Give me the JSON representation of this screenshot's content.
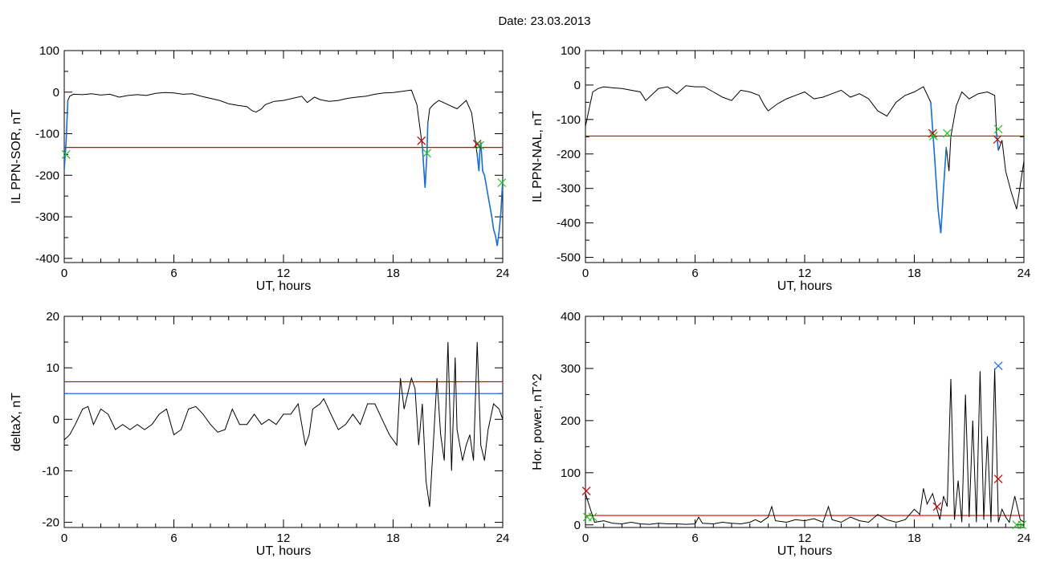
{
  "page": {
    "title": "Date:  23.03.2013"
  },
  "colors": {
    "trace": "#000000",
    "threshold_red": "#e00000",
    "threshold_blue": "#1a6fd1",
    "marker_red": "#c00000",
    "marker_green": "#22c022",
    "marker_blue": "#1a6fd1"
  },
  "chart_data": [
    {
      "id": "il-ppn-sor",
      "type": "line",
      "xlabel": "UT, hours",
      "ylabel": "IL PPN-SOR, nT",
      "xlim": [
        0,
        24
      ],
      "ylim": [
        -410,
        100
      ],
      "xticks": [
        0,
        6,
        12,
        18,
        24
      ],
      "yticks": [
        100,
        0,
        -100,
        -200,
        -300,
        -400
      ],
      "thresholds": [
        {
          "value": -133,
          "color": "red"
        }
      ],
      "highlight_ranges": [
        [
          0,
          0.25
        ],
        [
          19.6,
          19.95
        ],
        [
          22.6,
          24
        ]
      ],
      "series": [
        {
          "x": [
            0,
            0.1,
            0.2,
            0.3,
            0.5,
            1,
            1.5,
            2,
            2.5,
            3,
            3.5,
            4,
            4.5,
            5,
            5.5,
            6,
            6.5,
            7,
            7.5,
            8,
            8.5,
            9,
            9.5,
            10,
            10.3,
            10.5,
            10.8,
            11,
            11.5,
            12,
            12.5,
            13,
            13.3,
            13.7,
            14,
            14.5,
            15,
            15.5,
            16,
            16.5,
            17,
            17.5,
            18,
            18.5,
            19,
            19.3,
            19.6,
            19.75,
            19.85,
            19.9,
            20,
            20.2,
            20.5,
            21,
            21.5,
            22,
            22.3,
            22.6,
            22.7,
            22.75,
            22.8,
            22.9,
            23,
            23.2,
            23.4,
            23.5,
            23.6,
            23.7,
            23.8,
            23.9,
            24
          ],
          "y": [
            -185,
            -120,
            -20,
            -10,
            -5,
            -6,
            -4,
            -7,
            -5,
            -12,
            -8,
            -6,
            -8,
            -3,
            -1,
            -2,
            -5,
            -4,
            -10,
            -15,
            -20,
            -28,
            -32,
            -35,
            -45,
            -48,
            -40,
            -30,
            -22,
            -20,
            -15,
            -10,
            -25,
            -12,
            -18,
            -22,
            -20,
            -15,
            -12,
            -10,
            -5,
            -2,
            -1,
            2,
            5,
            -30,
            -130,
            -230,
            -150,
            -75,
            -40,
            -30,
            -20,
            -30,
            -40,
            -20,
            -50,
            -150,
            -190,
            -140,
            -120,
            -190,
            -200,
            -250,
            -300,
            -330,
            -345,
            -370,
            -335,
            -290,
            -210
          ]
        }
      ],
      "markers": [
        {
          "x": 19.55,
          "y": -117,
          "color": "red",
          "symbol": "x"
        },
        {
          "x": 19.85,
          "y": -147,
          "color": "green",
          "symbol": "x"
        },
        {
          "x": 22.6,
          "y": -125,
          "color": "red",
          "symbol": "x"
        },
        {
          "x": 22.75,
          "y": -128,
          "color": "green",
          "symbol": "x"
        },
        {
          "x": 23.95,
          "y": -218,
          "color": "green",
          "symbol": "x"
        },
        {
          "x": 0.1,
          "y": -150,
          "color": "green",
          "symbol": "x"
        }
      ]
    },
    {
      "id": "il-ppn-nal",
      "type": "line",
      "xlabel": "UT, hours",
      "ylabel": "IL PPN-NAL, nT",
      "xlim": [
        0,
        24
      ],
      "ylim": [
        -515,
        100
      ],
      "xticks": [
        0,
        6,
        12,
        18,
        24
      ],
      "yticks": [
        100,
        0,
        -100,
        -200,
        -300,
        -400,
        -500
      ],
      "thresholds": [
        {
          "value": -148,
          "color": "red"
        }
      ],
      "highlight_ranges": [
        [
          18.9,
          19.8
        ],
        [
          22.5,
          22.6
        ]
      ],
      "series": [
        {
          "x": [
            0,
            0.2,
            0.4,
            0.7,
            1,
            1.5,
            2,
            2.5,
            3,
            3.3,
            3.6,
            4,
            4.5,
            5,
            5.5,
            6,
            6.5,
            7,
            7.5,
            8,
            8.5,
            9,
            9.5,
            9.8,
            10,
            10.5,
            11,
            11.5,
            12,
            12.5,
            13,
            13.5,
            14,
            14.5,
            15,
            15.5,
            16,
            16.5,
            17,
            17.5,
            18,
            18.5,
            18.9,
            19.1,
            19.3,
            19.45,
            19.6,
            19.75,
            19.9,
            20,
            20.3,
            20.6,
            21,
            21.5,
            22,
            22.4,
            22.5,
            22.6,
            22.8,
            23,
            23.3,
            23.6,
            23.8,
            24
          ],
          "y": [
            -120,
            -70,
            -20,
            -10,
            -5,
            -8,
            -10,
            -15,
            -20,
            -45,
            -30,
            -10,
            -5,
            -25,
            -2,
            -5,
            -5,
            -20,
            -35,
            -45,
            -15,
            -20,
            -30,
            -60,
            -75,
            -55,
            -40,
            -30,
            -20,
            -40,
            -35,
            -25,
            -15,
            -35,
            -25,
            -40,
            -75,
            -90,
            -50,
            -30,
            -20,
            -5,
            -50,
            -200,
            -360,
            -430,
            -300,
            -180,
            -250,
            -150,
            -60,
            -20,
            -40,
            -25,
            -20,
            -30,
            -140,
            -190,
            -160,
            -250,
            -310,
            -360,
            -290,
            -220
          ]
        }
      ],
      "markers": [
        {
          "x": 19.0,
          "y": -140,
          "color": "red",
          "symbol": "x"
        },
        {
          "x": 19.05,
          "y": -148,
          "color": "green",
          "symbol": "x"
        },
        {
          "x": 19.8,
          "y": -140,
          "color": "green",
          "symbol": "x"
        },
        {
          "x": 22.6,
          "y": -128,
          "color": "green",
          "symbol": "x"
        },
        {
          "x": 22.55,
          "y": -158,
          "color": "red",
          "symbol": "x"
        }
      ]
    },
    {
      "id": "delta-x",
      "type": "line",
      "xlabel": "UT, hours",
      "ylabel": "deltaX, nT",
      "xlim": [
        0,
        24
      ],
      "ylim": [
        -21,
        20
      ],
      "xticks": [
        0,
        6,
        12,
        18,
        24
      ],
      "yticks": [
        20,
        10,
        0,
        -10,
        -20
      ],
      "thresholds": [
        {
          "value": 7.3,
          "color": "red"
        },
        {
          "value": 5.0,
          "color": "blue"
        }
      ],
      "highlight_ranges": [],
      "series": [
        {
          "x": [
            0,
            0.3,
            0.6,
            1,
            1.3,
            1.6,
            2,
            2.4,
            2.8,
            3.2,
            3.6,
            4,
            4.4,
            4.8,
            5.2,
            5.6,
            6,
            6.4,
            6.8,
            7.2,
            7.6,
            8,
            8.4,
            8.8,
            9.2,
            9.6,
            10,
            10.4,
            10.8,
            11.2,
            11.6,
            12,
            12.4,
            12.8,
            13.2,
            13.4,
            13.6,
            14,
            14.2,
            14.6,
            15,
            15.4,
            15.8,
            16.2,
            16.6,
            17,
            17.4,
            17.8,
            18.2,
            18.4,
            18.6,
            18.8,
            19,
            19.2,
            19.4,
            19.6,
            19.8,
            20,
            20.2,
            20.4,
            20.6,
            20.8,
            21,
            21.2,
            21.4,
            21.5,
            21.8,
            22,
            22.2,
            22.4,
            22.6,
            22.8,
            23,
            23.2,
            23.5,
            23.8,
            24
          ],
          "y": [
            -4,
            -3,
            -1,
            2,
            2.5,
            -1,
            2,
            1,
            -2,
            -1,
            -2,
            -1,
            -2,
            -1,
            1,
            2,
            -3,
            -2,
            2,
            2.5,
            1,
            -1,
            -2.5,
            -2,
            2,
            -1,
            -1,
            1,
            -1,
            0,
            -1,
            1,
            1,
            3,
            -5,
            -3,
            2,
            3,
            4,
            1,
            -2,
            -1,
            1,
            -1,
            3,
            3,
            0,
            -3,
            -5,
            8,
            2,
            5,
            8,
            6,
            -5,
            3,
            -12,
            -17,
            -5,
            8,
            -3,
            -8,
            15,
            -10,
            12,
            -2,
            -8,
            -5,
            -3,
            -8,
            15,
            -5,
            -8,
            -2,
            3,
            2,
            0
          ]
        }
      ],
      "markers": []
    },
    {
      "id": "hor-power",
      "type": "line",
      "xlabel": "UT, hours",
      "ylabel": "Hor. power, nT^2",
      "xlim": [
        0,
        24
      ],
      "ylim": [
        -5,
        400
      ],
      "xticks": [
        0,
        6,
        12,
        18,
        24
      ],
      "yticks": [
        400,
        300,
        200,
        100,
        0
      ],
      "thresholds": [
        {
          "value": 18,
          "color": "red"
        }
      ],
      "highlight_ranges": [],
      "series": [
        {
          "x": [
            0,
            0.5,
            1,
            1.5,
            2,
            2.5,
            3,
            3.5,
            4,
            4.5,
            5,
            5.5,
            6,
            6.2,
            6.4,
            7,
            7.5,
            8,
            8.5,
            9,
            9.3,
            9.6,
            10,
            10.2,
            10.4,
            11,
            11.5,
            12,
            12.5,
            13,
            13.3,
            13.5,
            14,
            14.5,
            15,
            15.5,
            16,
            16.5,
            17,
            17.5,
            18,
            18.3,
            18.5,
            18.7,
            19,
            19.2,
            19.4,
            19.6,
            19.8,
            20,
            20.2,
            20.4,
            20.6,
            20.8,
            21,
            21.2,
            21.4,
            21.6,
            21.8,
            22,
            22.2,
            22.4,
            22.6,
            22.8,
            23,
            23.2,
            23.5,
            23.8,
            24
          ],
          "y": [
            60,
            5,
            8,
            3,
            2,
            5,
            2,
            1,
            3,
            2,
            2,
            1,
            2,
            15,
            3,
            2,
            5,
            3,
            2,
            5,
            10,
            5,
            15,
            35,
            8,
            5,
            10,
            8,
            12,
            5,
            35,
            10,
            5,
            15,
            8,
            5,
            20,
            10,
            5,
            10,
            30,
            20,
            70,
            40,
            60,
            35,
            10,
            55,
            35,
            280,
            10,
            85,
            5,
            250,
            15,
            200,
            5,
            295,
            10,
            170,
            5,
            300,
            5,
            30,
            15,
            5,
            55,
            10,
            5
          ]
        }
      ],
      "markers": [
        {
          "x": 0.05,
          "y": 65,
          "color": "red",
          "symbol": "x"
        },
        {
          "x": 0.1,
          "y": 15,
          "color": "green",
          "symbol": "x"
        },
        {
          "x": 0.4,
          "y": 15,
          "color": "green",
          "symbol": "x"
        },
        {
          "x": 19.25,
          "y": 35,
          "color": "red",
          "symbol": "x"
        },
        {
          "x": 22.6,
          "y": 305,
          "color": "blue",
          "symbol": "x"
        },
        {
          "x": 22.6,
          "y": 88,
          "color": "red",
          "symbol": "x"
        },
        {
          "x": 23.6,
          "y": 0,
          "color": "green",
          "symbol": "x"
        },
        {
          "x": 23.9,
          "y": 0,
          "color": "green",
          "symbol": "x"
        }
      ]
    }
  ]
}
